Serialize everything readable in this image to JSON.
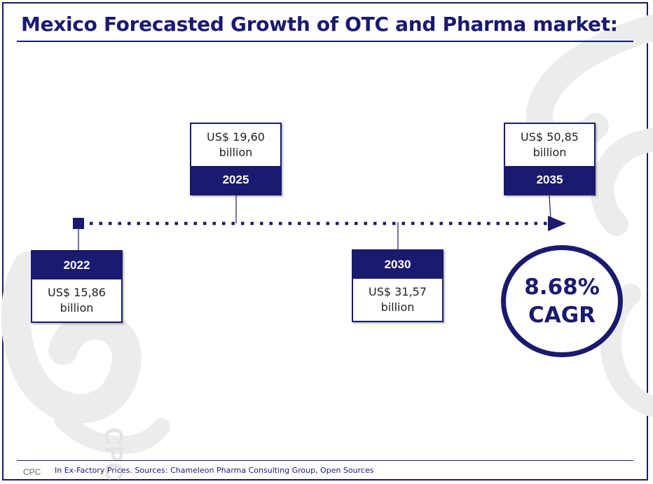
{
  "title": "Mexico Forecasted Growth of OTC and Pharma market:",
  "timeline": [
    {
      "year": "2022",
      "value_line1": "US$ 15,86",
      "value_line2": "billion"
    },
    {
      "year": "2025",
      "value_line1": "US$ 19,60",
      "value_line2": "billion"
    },
    {
      "year": "2030",
      "value_line1": "US$ 31,57",
      "value_line2": "billion"
    },
    {
      "year": "2035",
      "value_line1": "US$ 50,85",
      "value_line2": "billion"
    }
  ],
  "cagr": {
    "value": "8.68%",
    "label": "CAGR"
  },
  "footer": {
    "logo": "CPC",
    "note": "In Ex-Factory Prices. Sources: Chameleon Pharma Consulting Group, Open Sources"
  },
  "watermark_text": "CPC",
  "colors": {
    "navy": "#1a1a6e",
    "watermark": "#ececec"
  }
}
